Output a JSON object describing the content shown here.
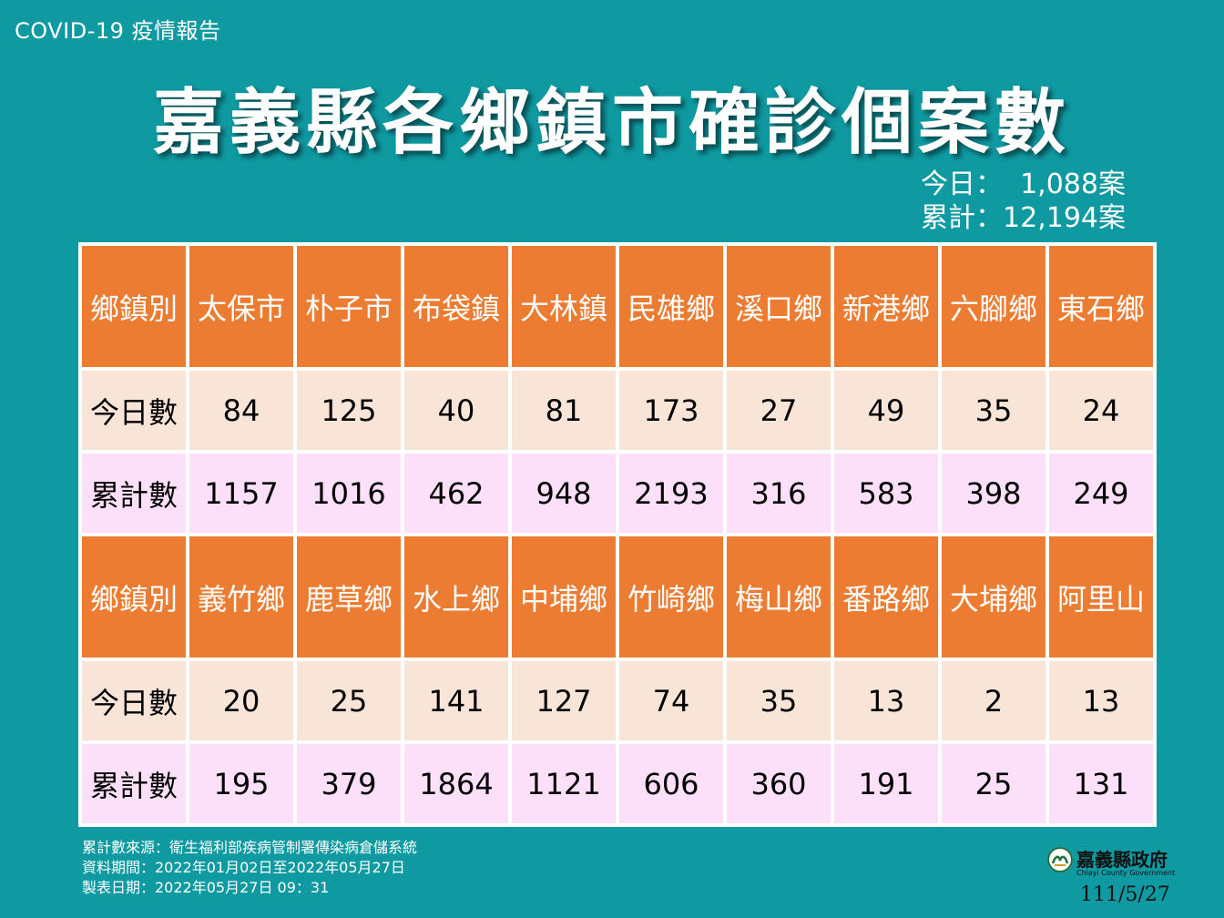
{
  "header": {
    "report_label": "COVID-19 疫情報告",
    "title": "嘉義縣各鄉鎮市確診個案數"
  },
  "summary": {
    "today_label": "今日：",
    "today_value": "1,088案",
    "total_label": "累計：",
    "total_value": "12,194案"
  },
  "table": {
    "sections": [
      {
        "header_label": "鄉鎮別",
        "today_label": "今日數",
        "total_label": "累計數",
        "towns": [
          "太保市",
          "朴子市",
          "布袋鎮",
          "大林鎮",
          "民雄鄉",
          "溪口鄉",
          "新港鄉",
          "六腳鄉",
          "東石鄉"
        ],
        "today": [
          "84",
          "125",
          "40",
          "81",
          "173",
          "27",
          "49",
          "35",
          "24"
        ],
        "total": [
          "1157",
          "1016",
          "462",
          "948",
          "2193",
          "316",
          "583",
          "398",
          "249"
        ]
      },
      {
        "header_label": "鄉鎮別",
        "today_label": "今日數",
        "total_label": "累計數",
        "towns": [
          "義竹鄉",
          "鹿草鄉",
          "水上鄉",
          "中埔鄉",
          "竹崎鄉",
          "梅山鄉",
          "番路鄉",
          "大埔鄉",
          "阿里山"
        ],
        "today": [
          "20",
          "25",
          "141",
          "127",
          "74",
          "35",
          "13",
          "2",
          "13"
        ],
        "total": [
          "195",
          "379",
          "1864",
          "1121",
          "606",
          "360",
          "191",
          "25",
          "131"
        ]
      }
    ]
  },
  "footer": {
    "source": "累計數來源：衛生福利部疾病管制署傳染病倉儲系統",
    "period": "資料期間：2022年01月02日至2022年05月27日",
    "made": "製表日期：2022年05月27日 09：31"
  },
  "gov": {
    "name": "嘉義縣政府",
    "name_en": "Chiayi County Government"
  },
  "date_stamp": "111/5/27",
  "colors": {
    "background": "#0f9aa2",
    "header_cell": "#ec7c31",
    "today_row": "#f8e5d8",
    "total_row": "#fcdff9"
  }
}
